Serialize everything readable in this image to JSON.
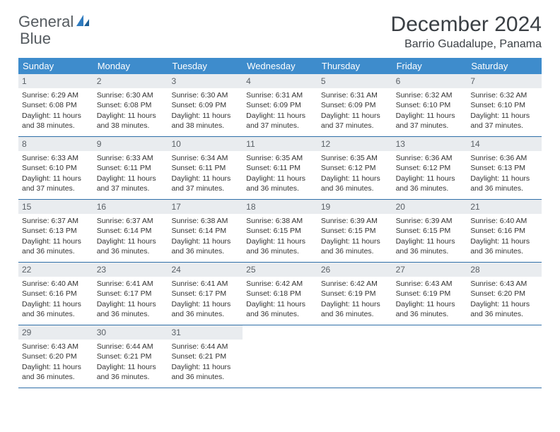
{
  "logo": {
    "text1": "General",
    "text2": "Blue"
  },
  "title": "December 2024",
  "location": "Barrio Guadalupe, Panama",
  "colors": {
    "header_bg": "#3e8ccc",
    "header_text": "#ffffff",
    "day_number_bg": "#e9ecef",
    "week_border": "#2f6fa8",
    "title_color": "#3a3f44",
    "logo_gray": "#555b60",
    "logo_blue": "#2f7bbf"
  },
  "weekdays": [
    "Sunday",
    "Monday",
    "Tuesday",
    "Wednesday",
    "Thursday",
    "Friday",
    "Saturday"
  ],
  "weeks": [
    [
      {
        "n": "1",
        "sunrise": "Sunrise: 6:29 AM",
        "sunset": "Sunset: 6:08 PM",
        "daylight": "Daylight: 11 hours and 38 minutes."
      },
      {
        "n": "2",
        "sunrise": "Sunrise: 6:30 AM",
        "sunset": "Sunset: 6:08 PM",
        "daylight": "Daylight: 11 hours and 38 minutes."
      },
      {
        "n": "3",
        "sunrise": "Sunrise: 6:30 AM",
        "sunset": "Sunset: 6:09 PM",
        "daylight": "Daylight: 11 hours and 38 minutes."
      },
      {
        "n": "4",
        "sunrise": "Sunrise: 6:31 AM",
        "sunset": "Sunset: 6:09 PM",
        "daylight": "Daylight: 11 hours and 37 minutes."
      },
      {
        "n": "5",
        "sunrise": "Sunrise: 6:31 AM",
        "sunset": "Sunset: 6:09 PM",
        "daylight": "Daylight: 11 hours and 37 minutes."
      },
      {
        "n": "6",
        "sunrise": "Sunrise: 6:32 AM",
        "sunset": "Sunset: 6:10 PM",
        "daylight": "Daylight: 11 hours and 37 minutes."
      },
      {
        "n": "7",
        "sunrise": "Sunrise: 6:32 AM",
        "sunset": "Sunset: 6:10 PM",
        "daylight": "Daylight: 11 hours and 37 minutes."
      }
    ],
    [
      {
        "n": "8",
        "sunrise": "Sunrise: 6:33 AM",
        "sunset": "Sunset: 6:10 PM",
        "daylight": "Daylight: 11 hours and 37 minutes."
      },
      {
        "n": "9",
        "sunrise": "Sunrise: 6:33 AM",
        "sunset": "Sunset: 6:11 PM",
        "daylight": "Daylight: 11 hours and 37 minutes."
      },
      {
        "n": "10",
        "sunrise": "Sunrise: 6:34 AM",
        "sunset": "Sunset: 6:11 PM",
        "daylight": "Daylight: 11 hours and 37 minutes."
      },
      {
        "n": "11",
        "sunrise": "Sunrise: 6:35 AM",
        "sunset": "Sunset: 6:11 PM",
        "daylight": "Daylight: 11 hours and 36 minutes."
      },
      {
        "n": "12",
        "sunrise": "Sunrise: 6:35 AM",
        "sunset": "Sunset: 6:12 PM",
        "daylight": "Daylight: 11 hours and 36 minutes."
      },
      {
        "n": "13",
        "sunrise": "Sunrise: 6:36 AM",
        "sunset": "Sunset: 6:12 PM",
        "daylight": "Daylight: 11 hours and 36 minutes."
      },
      {
        "n": "14",
        "sunrise": "Sunrise: 6:36 AM",
        "sunset": "Sunset: 6:13 PM",
        "daylight": "Daylight: 11 hours and 36 minutes."
      }
    ],
    [
      {
        "n": "15",
        "sunrise": "Sunrise: 6:37 AM",
        "sunset": "Sunset: 6:13 PM",
        "daylight": "Daylight: 11 hours and 36 minutes."
      },
      {
        "n": "16",
        "sunrise": "Sunrise: 6:37 AM",
        "sunset": "Sunset: 6:14 PM",
        "daylight": "Daylight: 11 hours and 36 minutes."
      },
      {
        "n": "17",
        "sunrise": "Sunrise: 6:38 AM",
        "sunset": "Sunset: 6:14 PM",
        "daylight": "Daylight: 11 hours and 36 minutes."
      },
      {
        "n": "18",
        "sunrise": "Sunrise: 6:38 AM",
        "sunset": "Sunset: 6:15 PM",
        "daylight": "Daylight: 11 hours and 36 minutes."
      },
      {
        "n": "19",
        "sunrise": "Sunrise: 6:39 AM",
        "sunset": "Sunset: 6:15 PM",
        "daylight": "Daylight: 11 hours and 36 minutes."
      },
      {
        "n": "20",
        "sunrise": "Sunrise: 6:39 AM",
        "sunset": "Sunset: 6:15 PM",
        "daylight": "Daylight: 11 hours and 36 minutes."
      },
      {
        "n": "21",
        "sunrise": "Sunrise: 6:40 AM",
        "sunset": "Sunset: 6:16 PM",
        "daylight": "Daylight: 11 hours and 36 minutes."
      }
    ],
    [
      {
        "n": "22",
        "sunrise": "Sunrise: 6:40 AM",
        "sunset": "Sunset: 6:16 PM",
        "daylight": "Daylight: 11 hours and 36 minutes."
      },
      {
        "n": "23",
        "sunrise": "Sunrise: 6:41 AM",
        "sunset": "Sunset: 6:17 PM",
        "daylight": "Daylight: 11 hours and 36 minutes."
      },
      {
        "n": "24",
        "sunrise": "Sunrise: 6:41 AM",
        "sunset": "Sunset: 6:17 PM",
        "daylight": "Daylight: 11 hours and 36 minutes."
      },
      {
        "n": "25",
        "sunrise": "Sunrise: 6:42 AM",
        "sunset": "Sunset: 6:18 PM",
        "daylight": "Daylight: 11 hours and 36 minutes."
      },
      {
        "n": "26",
        "sunrise": "Sunrise: 6:42 AM",
        "sunset": "Sunset: 6:19 PM",
        "daylight": "Daylight: 11 hours and 36 minutes."
      },
      {
        "n": "27",
        "sunrise": "Sunrise: 6:43 AM",
        "sunset": "Sunset: 6:19 PM",
        "daylight": "Daylight: 11 hours and 36 minutes."
      },
      {
        "n": "28",
        "sunrise": "Sunrise: 6:43 AM",
        "sunset": "Sunset: 6:20 PM",
        "daylight": "Daylight: 11 hours and 36 minutes."
      }
    ],
    [
      {
        "n": "29",
        "sunrise": "Sunrise: 6:43 AM",
        "sunset": "Sunset: 6:20 PM",
        "daylight": "Daylight: 11 hours and 36 minutes."
      },
      {
        "n": "30",
        "sunrise": "Sunrise: 6:44 AM",
        "sunset": "Sunset: 6:21 PM",
        "daylight": "Daylight: 11 hours and 36 minutes."
      },
      {
        "n": "31",
        "sunrise": "Sunrise: 6:44 AM",
        "sunset": "Sunset: 6:21 PM",
        "daylight": "Daylight: 11 hours and 36 minutes."
      },
      null,
      null,
      null,
      null
    ]
  ]
}
